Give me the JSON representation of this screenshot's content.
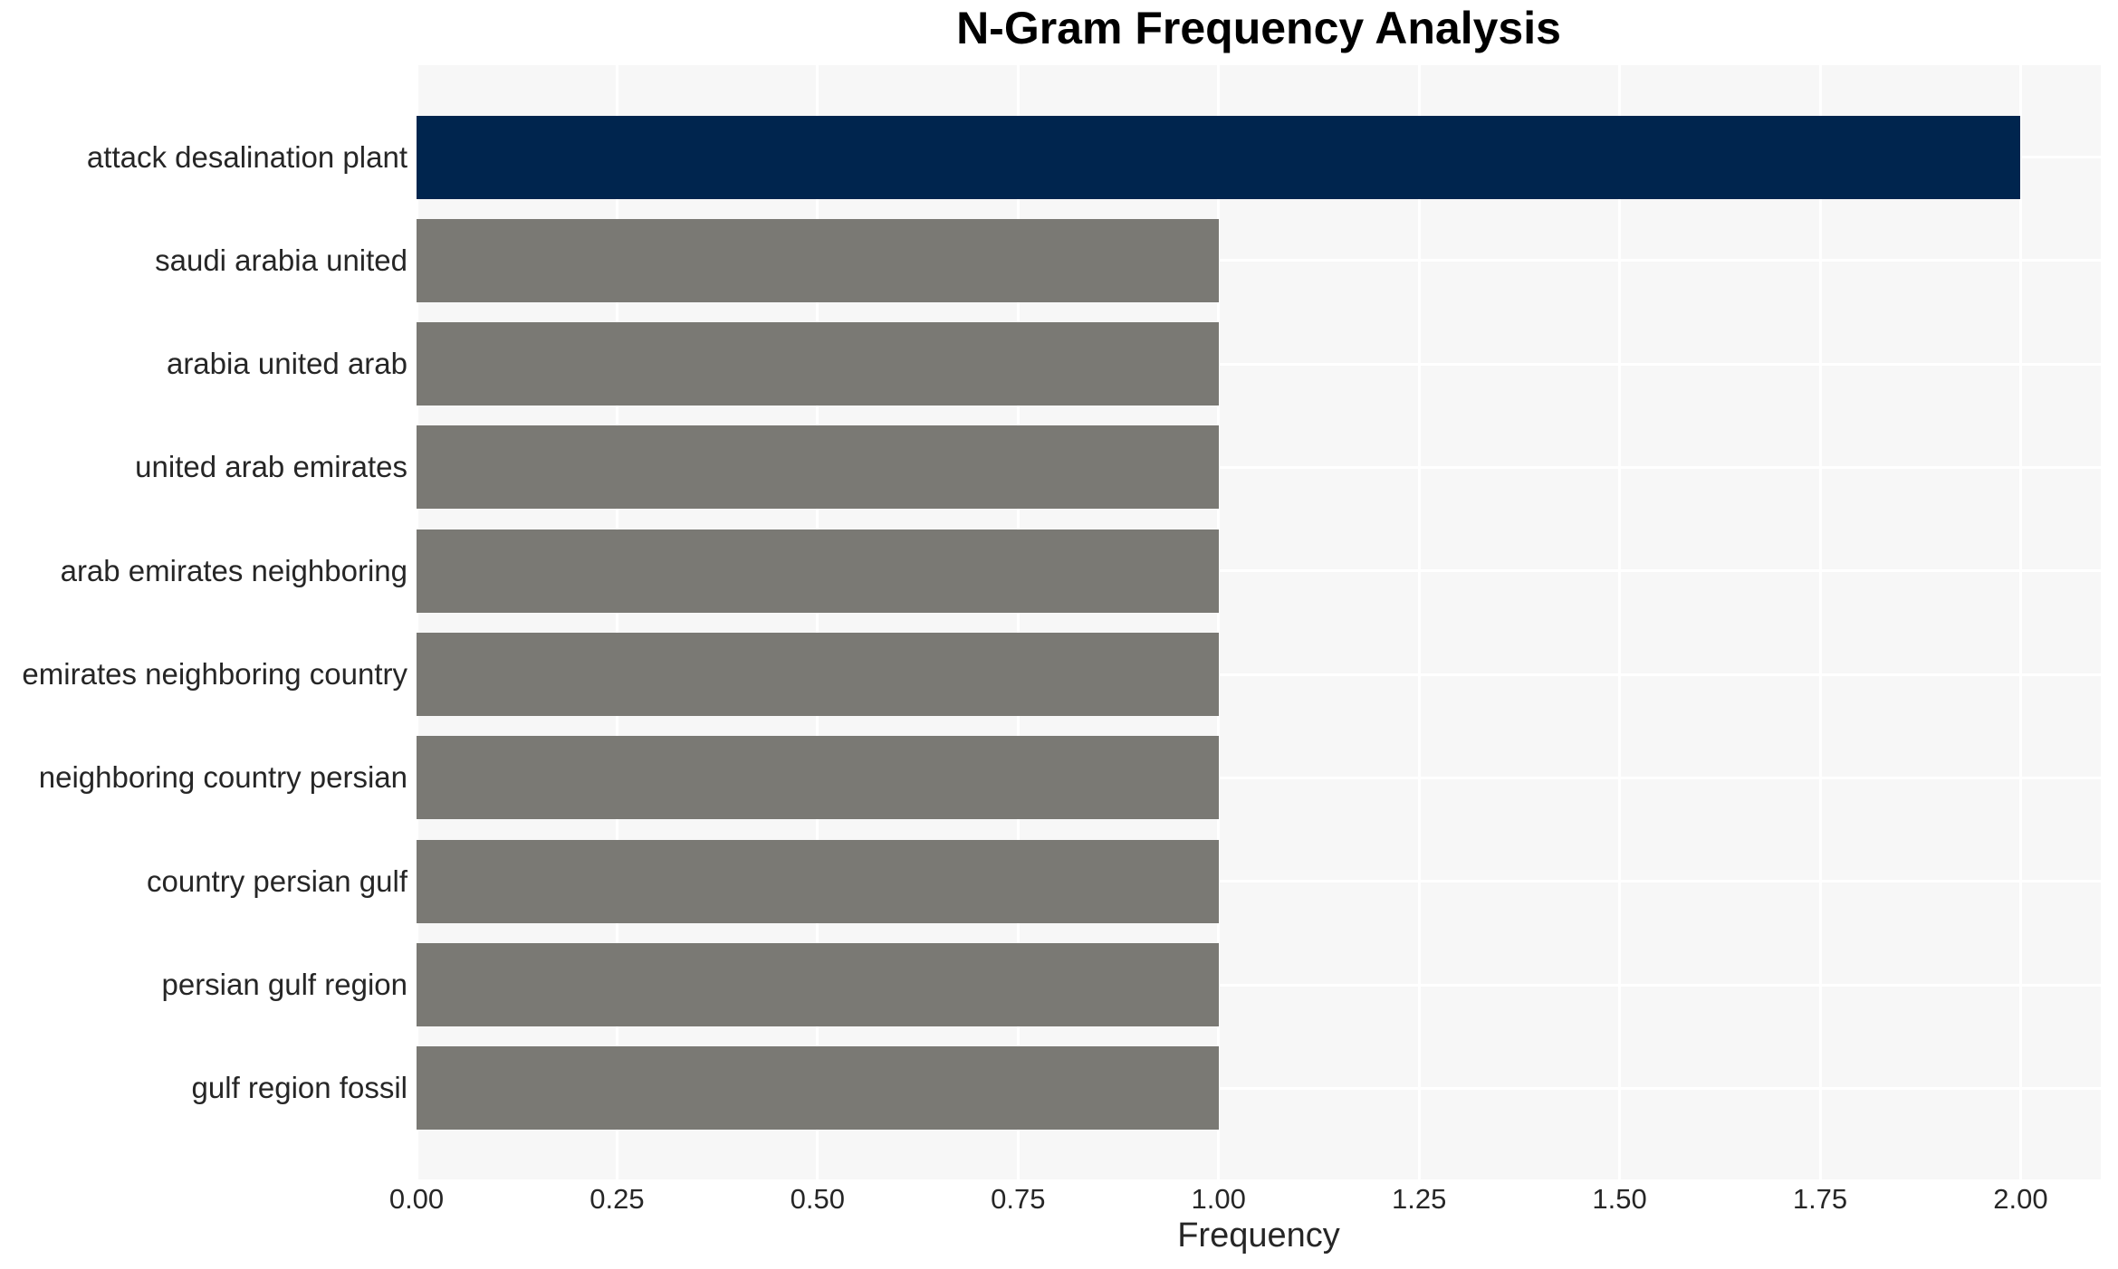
{
  "chart_data": {
    "type": "bar",
    "orientation": "horizontal",
    "title": "N-Gram Frequency Analysis",
    "xlabel": "Frequency",
    "ylabel": "",
    "categories": [
      "attack desalination plant",
      "saudi arabia united",
      "arabia united arab",
      "united arab emirates",
      "arab emirates neighboring",
      "emirates neighboring country",
      "neighboring country persian",
      "country persian gulf",
      "persian gulf region",
      "gulf region fossil"
    ],
    "values": [
      2.0,
      1.0,
      1.0,
      1.0,
      1.0,
      1.0,
      1.0,
      1.0,
      1.0,
      1.0
    ],
    "highlight_index": 0,
    "xlim": [
      0,
      2.1
    ],
    "xticks": [
      0,
      0.25,
      0.5,
      0.75,
      1.0,
      1.25,
      1.5,
      1.75,
      2.0
    ],
    "xtick_labels": [
      "0.00",
      "0.25",
      "0.50",
      "0.75",
      "1.00",
      "1.25",
      "1.50",
      "1.75",
      "2.00"
    ],
    "grid": true,
    "legend": false,
    "colors": {
      "bar_highlight": "#00254e",
      "bar_default": "#7a7974",
      "panel_background": "#f7f7f7",
      "gridline": "#ffffff",
      "title_text": "#000000",
      "label_text": "#262626"
    }
  }
}
